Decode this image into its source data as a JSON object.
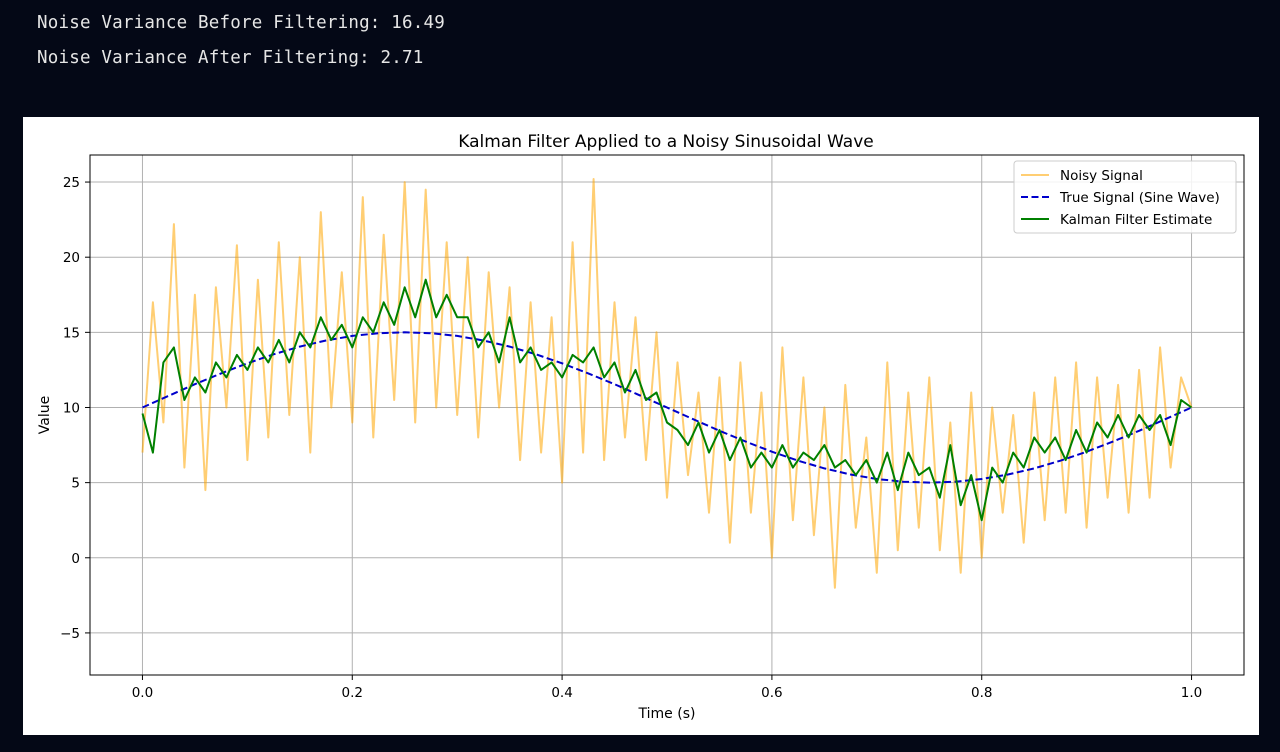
{
  "output": {
    "line1": "Noise Variance Before Filtering: 16.49",
    "line2": "Noise Variance After Filtering: 2.71"
  },
  "chart_data": {
    "type": "line",
    "title": "Kalman Filter Applied to a Noisy Sinusoidal Wave",
    "xlabel": "Time (s)",
    "ylabel": "Value",
    "xlim": [
      -0.05,
      1.05
    ],
    "ylim": [
      -7.8,
      26.8
    ],
    "grid": true,
    "legend_position": "top-right",
    "x_ticks": [
      {
        "value": 0.0,
        "label": "0.0"
      },
      {
        "value": 0.2,
        "label": "0.2"
      },
      {
        "value": 0.4,
        "label": "0.4"
      },
      {
        "value": 0.6,
        "label": "0.6"
      },
      {
        "value": 0.8,
        "label": "0.8"
      },
      {
        "value": 1.0,
        "label": "1.0"
      }
    ],
    "y_ticks": [
      {
        "value": -5,
        "label": "−5"
      },
      {
        "value": 0,
        "label": "0"
      },
      {
        "value": 5,
        "label": "5"
      },
      {
        "value": 10,
        "label": "10"
      },
      {
        "value": 15,
        "label": "15"
      },
      {
        "value": 20,
        "label": "20"
      },
      {
        "value": 25,
        "label": "25"
      }
    ],
    "series": [
      {
        "name": "Noisy Signal",
        "color": "#ffa500",
        "opacity": 0.55,
        "style": "solid",
        "x": [
          0.0,
          0.01,
          0.02,
          0.03,
          0.04,
          0.05,
          0.06,
          0.07,
          0.08,
          0.09,
          0.1,
          0.11,
          0.12,
          0.13,
          0.14,
          0.15,
          0.16,
          0.17,
          0.18,
          0.19,
          0.2,
          0.21,
          0.22,
          0.23,
          0.24,
          0.25,
          0.26,
          0.27,
          0.28,
          0.29,
          0.3,
          0.31,
          0.32,
          0.33,
          0.34,
          0.35,
          0.36,
          0.37,
          0.38,
          0.39,
          0.4,
          0.41,
          0.42,
          0.43,
          0.44,
          0.45,
          0.46,
          0.47,
          0.48,
          0.49,
          0.5,
          0.51,
          0.52,
          0.53,
          0.54,
          0.55,
          0.56,
          0.57,
          0.58,
          0.59,
          0.6,
          0.61,
          0.62,
          0.63,
          0.64,
          0.65,
          0.66,
          0.67,
          0.68,
          0.69,
          0.7,
          0.71,
          0.72,
          0.73,
          0.74,
          0.75,
          0.76,
          0.77,
          0.78,
          0.79,
          0.8,
          0.81,
          0.82,
          0.83,
          0.84,
          0.85,
          0.86,
          0.87,
          0.88,
          0.89,
          0.9,
          0.91,
          0.92,
          0.93,
          0.94,
          0.95,
          0.96,
          0.97,
          0.98,
          0.99,
          1.0
        ],
        "y": [
          7.0,
          17.0,
          9.0,
          22.2,
          6.0,
          17.5,
          4.5,
          18.0,
          10.0,
          20.8,
          6.5,
          18.5,
          8.0,
          21.0,
          9.5,
          20.0,
          7.0,
          23.0,
          10.0,
          19.0,
          9.0,
          24.0,
          8.0,
          21.5,
          10.5,
          25.0,
          9.0,
          24.5,
          10.0,
          21.0,
          9.5,
          20.0,
          8.0,
          19.0,
          10.0,
          18.0,
          6.5,
          17.0,
          7.0,
          16.0,
          5.0,
          21.0,
          7.0,
          25.2,
          6.5,
          17.0,
          8.0,
          16.0,
          6.5,
          15.0,
          4.0,
          13.0,
          5.5,
          11.0,
          3.0,
          12.0,
          1.0,
          13.0,
          3.0,
          11.0,
          0.0,
          14.0,
          2.5,
          12.0,
          1.5,
          10.0,
          -2.0,
          11.5,
          2.0,
          8.0,
          -1.0,
          13.0,
          0.5,
          11.0,
          2.0,
          12.0,
          0.5,
          9.0,
          -1.0,
          11.0,
          0.0,
          10.0,
          3.0,
          9.5,
          1.0,
          11.0,
          2.5,
          12.0,
          3.0,
          13.0,
          2.0,
          12.0,
          4.0,
          11.5,
          3.0,
          12.5,
          4.0,
          14.0,
          6.0,
          12.0,
          10.0
        ]
      },
      {
        "name": "True Signal (Sine Wave)",
        "color": "#0000cc",
        "style": "dashed",
        "x": [
          0.0,
          0.025,
          0.05,
          0.075,
          0.1,
          0.125,
          0.15,
          0.175,
          0.2,
          0.225,
          0.25,
          0.275,
          0.3,
          0.325,
          0.35,
          0.375,
          0.4,
          0.425,
          0.45,
          0.475,
          0.5,
          0.525,
          0.55,
          0.575,
          0.6,
          0.625,
          0.65,
          0.675,
          0.7,
          0.725,
          0.75,
          0.775,
          0.8,
          0.825,
          0.85,
          0.875,
          0.9,
          0.925,
          0.95,
          0.975,
          1.0
        ],
        "y": [
          10.0,
          10.78,
          11.55,
          12.27,
          12.94,
          13.54,
          14.05,
          14.46,
          14.76,
          14.94,
          15.0,
          14.94,
          14.76,
          14.46,
          14.05,
          13.54,
          12.94,
          12.27,
          11.55,
          10.78,
          10.0,
          9.22,
          8.45,
          7.73,
          7.06,
          6.46,
          5.95,
          5.54,
          5.24,
          5.06,
          5.0,
          5.06,
          5.24,
          5.54,
          5.95,
          6.46,
          7.06,
          7.73,
          8.45,
          9.22,
          10.0
        ]
      },
      {
        "name": "Kalman Filter Estimate",
        "color": "#008000",
        "style": "solid",
        "x": [
          0.0,
          0.01,
          0.02,
          0.03,
          0.04,
          0.05,
          0.06,
          0.07,
          0.08,
          0.09,
          0.1,
          0.11,
          0.12,
          0.13,
          0.14,
          0.15,
          0.16,
          0.17,
          0.18,
          0.19,
          0.2,
          0.21,
          0.22,
          0.23,
          0.24,
          0.25,
          0.26,
          0.27,
          0.28,
          0.29,
          0.3,
          0.31,
          0.32,
          0.33,
          0.34,
          0.35,
          0.36,
          0.37,
          0.38,
          0.39,
          0.4,
          0.41,
          0.42,
          0.43,
          0.44,
          0.45,
          0.46,
          0.47,
          0.48,
          0.49,
          0.5,
          0.51,
          0.52,
          0.53,
          0.54,
          0.55,
          0.56,
          0.57,
          0.58,
          0.59,
          0.6,
          0.61,
          0.62,
          0.63,
          0.64,
          0.65,
          0.66,
          0.67,
          0.68,
          0.69,
          0.7,
          0.71,
          0.72,
          0.73,
          0.74,
          0.75,
          0.76,
          0.77,
          0.78,
          0.79,
          0.8,
          0.81,
          0.82,
          0.83,
          0.84,
          0.85,
          0.86,
          0.87,
          0.88,
          0.89,
          0.9,
          0.91,
          0.92,
          0.93,
          0.94,
          0.95,
          0.96,
          0.97,
          0.98,
          0.99,
          1.0
        ],
        "y": [
          9.6,
          7.0,
          13.0,
          14.0,
          10.5,
          12.0,
          11.0,
          13.0,
          12.0,
          13.5,
          12.5,
          14.0,
          13.0,
          14.5,
          13.0,
          15.0,
          14.0,
          16.0,
          14.5,
          15.5,
          14.0,
          16.0,
          15.0,
          17.0,
          15.5,
          18.0,
          16.0,
          18.5,
          16.0,
          17.5,
          16.0,
          16.0,
          14.0,
          15.0,
          13.0,
          16.0,
          13.0,
          14.0,
          12.5,
          13.0,
          12.0,
          13.5,
          13.0,
          14.0,
          12.0,
          13.0,
          11.0,
          12.5,
          10.5,
          11.0,
          9.0,
          8.5,
          7.5,
          9.0,
          7.0,
          8.5,
          6.5,
          8.0,
          6.0,
          7.0,
          6.0,
          7.5,
          6.0,
          7.0,
          6.5,
          7.5,
          6.0,
          6.5,
          5.5,
          6.5,
          5.0,
          7.0,
          4.5,
          7.0,
          5.5,
          6.0,
          4.0,
          7.5,
          3.5,
          5.5,
          2.5,
          6.0,
          5.0,
          7.0,
          6.0,
          8.0,
          7.0,
          8.0,
          6.5,
          8.5,
          7.0,
          9.0,
          8.0,
          9.5,
          8.0,
          9.5,
          8.5,
          9.5,
          7.5,
          10.5,
          10.0
        ]
      }
    ]
  }
}
